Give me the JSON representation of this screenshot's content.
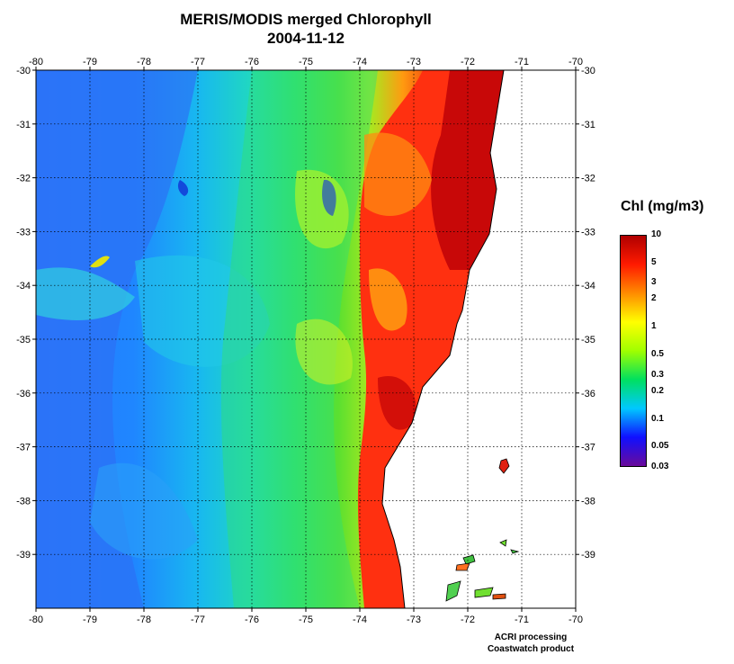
{
  "title": "MERIS/MODIS merged Chlorophyll",
  "subtitle": "2004-11-12",
  "map": {
    "lon_range": [
      -80,
      -70
    ],
    "lat_range": [
      -40,
      -30
    ],
    "lon_ticks": [
      "-80",
      "-79",
      "-78",
      "-77",
      "-76",
      "-75",
      "-74",
      "-73",
      "-72",
      "-71",
      "-70"
    ],
    "lat_ticks": [
      "-30",
      "-31",
      "-32",
      "-33",
      "-34",
      "-35",
      "-36",
      "-37",
      "-38",
      "-39"
    ],
    "grid": "dotted",
    "land_color": "#ffffff",
    "coastline_color": "#000000"
  },
  "legend": {
    "title": "Chl (mg/m3)",
    "scale": "log",
    "range": [
      0.03,
      10
    ],
    "labels": [
      "10",
      "5",
      "3",
      "2",
      "1",
      "0.5",
      "0.3",
      "0.2",
      "0.1",
      "0.05",
      "0.03"
    ],
    "colors": [
      "#6a0a9a",
      "#1010ff",
      "#00c8ff",
      "#00e060",
      "#a0ff00",
      "#ffff00",
      "#ff8c00",
      "#ff1a00",
      "#b00000"
    ]
  },
  "credits": [
    "ACRI processing",
    "Coastwatch product"
  ]
}
